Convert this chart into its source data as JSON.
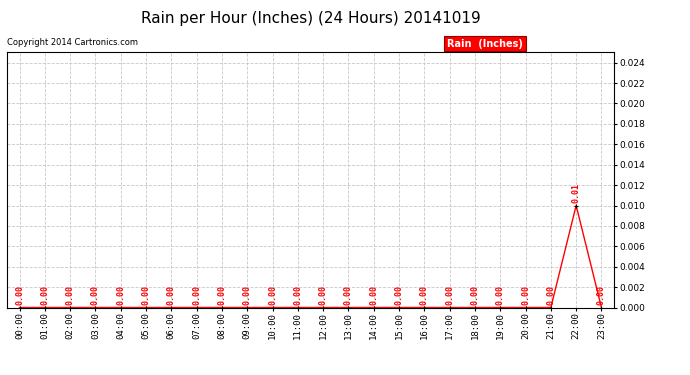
{
  "title": "Rain per Hour (Inches) (24 Hours) 20141019",
  "copyright_text": "Copyright 2014 Cartronics.com",
  "legend_label": "Rain  (Inches)",
  "hours": [
    "00:00",
    "01:00",
    "02:00",
    "03:00",
    "04:00",
    "05:00",
    "06:00",
    "07:00",
    "08:00",
    "09:00",
    "10:00",
    "11:00",
    "12:00",
    "13:00",
    "14:00",
    "15:00",
    "16:00",
    "17:00",
    "18:00",
    "19:00",
    "20:00",
    "21:00",
    "22:00",
    "23:00"
  ],
  "values": [
    0.0,
    0.0,
    0.0,
    0.0,
    0.0,
    0.0,
    0.0,
    0.0,
    0.0,
    0.0,
    0.0,
    0.0,
    0.0,
    0.0,
    0.0,
    0.0,
    0.0,
    0.0,
    0.0,
    0.0,
    0.0,
    0.0,
    0.01,
    0.0
  ],
  "line_color": "#ff0000",
  "marker_color": "#000000",
  "background_color": "#ffffff",
  "grid_color": "#c8c8c8",
  "ylim": [
    0,
    0.025
  ],
  "yticks": [
    0.0,
    0.002,
    0.004,
    0.006,
    0.008,
    0.01,
    0.012,
    0.014,
    0.016,
    0.018,
    0.02,
    0.022,
    0.024
  ],
  "title_fontsize": 11,
  "tick_fontsize": 6.5,
  "annotation_fontsize": 6,
  "legend_fontsize": 7,
  "copyright_fontsize": 6
}
